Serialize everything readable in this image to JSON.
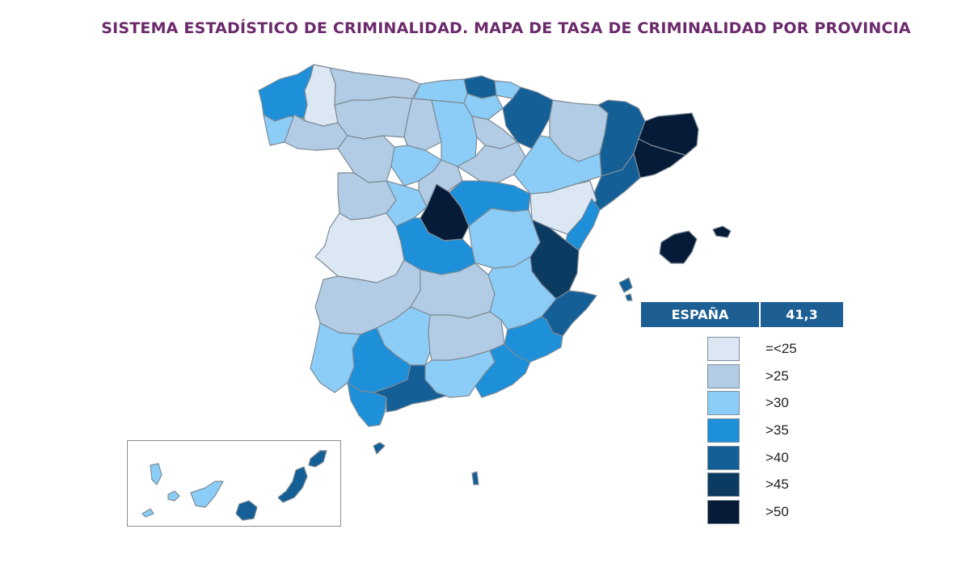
{
  "title": "SISTEMA ESTADÍSTICO DE CRIMINALIDAD. MAPA DE TASA DE CRIMINALIDAD POR PROVINCIA",
  "summary": {
    "label": "ESPAÑA",
    "value": "41,3"
  },
  "legend": [
    {
      "label": "=<25",
      "color": "#dbe7f2"
    },
    {
      "label": ">25",
      "color": "#b2cce5"
    },
    {
      "label": ">30",
      "color": "#8ccdf7"
    },
    {
      "label": ">35",
      "color": "#1e8fd9"
    },
    {
      "label": ">40",
      "color": "#135f96"
    },
    {
      "label": ">45",
      "color": "#0c3b61"
    },
    {
      "label": ">50",
      "color": "#061b38"
    }
  ],
  "provinces": [
    {
      "name": "A Coruña",
      "cls": 3
    },
    {
      "name": "Lugo",
      "cls": 0
    },
    {
      "name": "Pontevedra",
      "cls": 2
    },
    {
      "name": "Ourense",
      "cls": 1
    },
    {
      "name": "Asturias",
      "cls": 1
    },
    {
      "name": "Cantabria",
      "cls": 2
    },
    {
      "name": "Vizcaya",
      "cls": 4
    },
    {
      "name": "Guipúzcoa",
      "cls": 2
    },
    {
      "name": "Álava",
      "cls": 2
    },
    {
      "name": "Navarra",
      "cls": 4
    },
    {
      "name": "León",
      "cls": 1
    },
    {
      "name": "Palencia",
      "cls": 1
    },
    {
      "name": "Burgos",
      "cls": 2
    },
    {
      "name": "La Rioja",
      "cls": 1
    },
    {
      "name": "Zamora",
      "cls": 1
    },
    {
      "name": "Valladolid",
      "cls": 2
    },
    {
      "name": "Soria",
      "cls": 1
    },
    {
      "name": "Huesca",
      "cls": 1
    },
    {
      "name": "Zaragoza",
      "cls": 2
    },
    {
      "name": "Lleida",
      "cls": 4
    },
    {
      "name": "Girona",
      "cls": 6
    },
    {
      "name": "Barcelona",
      "cls": 6
    },
    {
      "name": "Tarragona",
      "cls": 4
    },
    {
      "name": "Salamanca",
      "cls": 1
    },
    {
      "name": "Ávila",
      "cls": 2
    },
    {
      "name": "Segovia",
      "cls": 1
    },
    {
      "name": "Madrid",
      "cls": 6
    },
    {
      "name": "Guadalajara",
      "cls": 3
    },
    {
      "name": "Teruel",
      "cls": 0
    },
    {
      "name": "Castellón",
      "cls": 3
    },
    {
      "name": "Cáceres",
      "cls": 0
    },
    {
      "name": "Toledo",
      "cls": 3
    },
    {
      "name": "Cuenca",
      "cls": 2
    },
    {
      "name": "Valencia",
      "cls": 5
    },
    {
      "name": "Badajoz",
      "cls": 1
    },
    {
      "name": "Ciudad Real",
      "cls": 1
    },
    {
      "name": "Albacete",
      "cls": 2
    },
    {
      "name": "Alicante",
      "cls": 4
    },
    {
      "name": "Murcia",
      "cls": 3
    },
    {
      "name": "Huelva",
      "cls": 2
    },
    {
      "name": "Sevilla",
      "cls": 3
    },
    {
      "name": "Córdoba",
      "cls": 2
    },
    {
      "name": "Jaén",
      "cls": 1
    },
    {
      "name": "Granada",
      "cls": 2
    },
    {
      "name": "Almería",
      "cls": 3
    },
    {
      "name": "Cádiz",
      "cls": 3
    },
    {
      "name": "Málaga",
      "cls": 4
    },
    {
      "name": "Illes Balears",
      "cls": 6
    },
    {
      "name": "Ibiza",
      "cls": 4
    },
    {
      "name": "Ceuta",
      "cls": 4
    },
    {
      "name": "Melilla",
      "cls": 4
    },
    {
      "name": "Santa Cruz de Tenerife",
      "cls": 2
    },
    {
      "name": "Las Palmas",
      "cls": 4
    }
  ]
}
